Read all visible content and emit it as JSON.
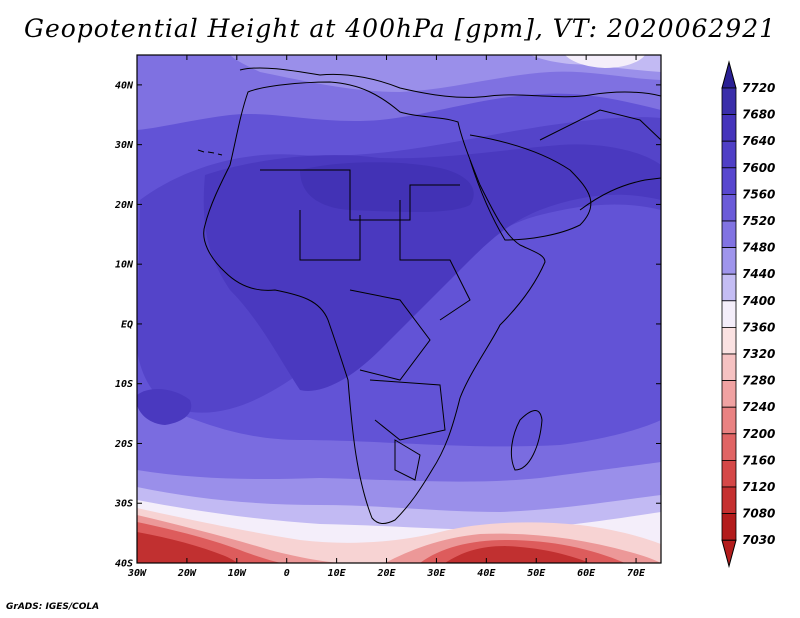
{
  "title": "Geopotential Height at 400hPa [gpm], VT: 2020062921",
  "credit": "GrADS: IGES/COLA",
  "map": {
    "lat_labels": [
      "40N",
      "30N",
      "20N",
      "10N",
      "EQ",
      "10S",
      "20S",
      "30S",
      "40S"
    ],
    "lat_values": [
      40,
      30,
      20,
      10,
      0,
      -10,
      -20,
      -30,
      -40
    ],
    "lon_labels": [
      "30W",
      "20W",
      "10W",
      "0",
      "10E",
      "20E",
      "30E",
      "40E",
      "50E",
      "60E",
      "70E"
    ],
    "lon_values": [
      -30,
      -20,
      -10,
      0,
      10,
      20,
      30,
      40,
      50,
      60,
      70
    ],
    "lon_range": [
      -30,
      75
    ],
    "lat_range": [
      -40,
      45
    ]
  },
  "colorbar": {
    "labels": [
      "7720",
      "7680",
      "7640",
      "7600",
      "7560",
      "7520",
      "7480",
      "7440",
      "7400",
      "7360",
      "7320",
      "7280",
      "7240",
      "7200",
      "7160",
      "7120",
      "7080",
      "7030"
    ],
    "colors": [
      "#2a2094",
      "#3a2eaa",
      "#4534bb",
      "#4f3fc6",
      "#5847cf",
      "#6b5bd9",
      "#8173e2",
      "#9f95ec",
      "#c4bdf4",
      "#f4eefa",
      "#fbe2e2",
      "#f6c2c2",
      "#f0a2a2",
      "#e98282",
      "#e06464",
      "#d54848",
      "#c53030",
      "#b31c1c"
    ]
  }
}
